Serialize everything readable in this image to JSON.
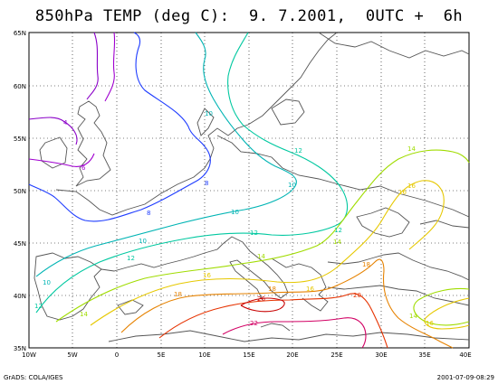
{
  "title": "850hPa TEMP (deg C):  9. 7.2001,  0UTC +  6h",
  "footer_left": "GrADS: COLA/IGES",
  "footer_right": "2001-07-09-08:29",
  "lat_ticks": [
    "65N",
    "60N",
    "55N",
    "50N",
    "45N",
    "40N",
    "35N"
  ],
  "lon_ticks": [
    "10W",
    "5W",
    "0",
    "5E",
    "10E",
    "15E",
    "20E",
    "25E",
    "30E",
    "35E",
    "40E"
  ],
  "contour_levels": [
    {
      "value": "4",
      "color": "#8a00c8"
    },
    {
      "value": "6",
      "color": "#a000d0"
    },
    {
      "value": "8",
      "color": "#1e3cff"
    },
    {
      "value": "10",
      "color": "#00b4b4"
    },
    {
      "value": "12",
      "color": "#00c8a0"
    },
    {
      "value": "14",
      "color": "#a0dc00"
    },
    {
      "value": "16",
      "color": "#e6c800"
    },
    {
      "value": "18",
      "color": "#e68200"
    },
    {
      "value": "20",
      "color": "#e63200"
    },
    {
      "value": "22",
      "color": "#d20064"
    },
    {
      "value": "26",
      "color": "#c80000"
    }
  ]
}
